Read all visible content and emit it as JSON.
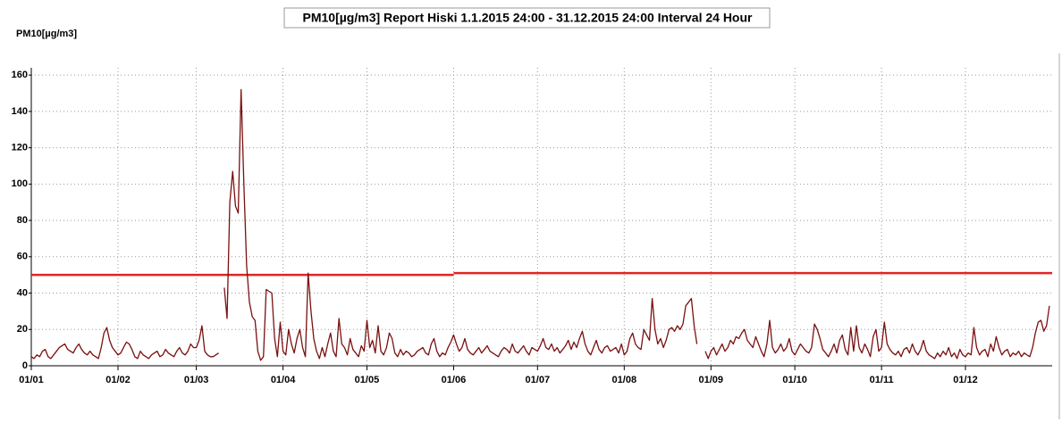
{
  "chart_data": {
    "type": "line",
    "title": "PM10[µg/m3] Report Hiski 1.1.2015 24:00 - 31.12.2015 24:00 Interval 24 Hour",
    "y_label": "PM10[µg/m3]",
    "xlim": [
      0,
      365
    ],
    "ylim": [
      0,
      164
    ],
    "xticks": [
      {
        "value": 0,
        "label": "01/01"
      },
      {
        "value": 31,
        "label": "01/02"
      },
      {
        "value": 59,
        "label": "01/03"
      },
      {
        "value": 90,
        "label": "01/04"
      },
      {
        "value": 120,
        "label": "01/05"
      },
      {
        "value": 151,
        "label": "01/06"
      },
      {
        "value": 181,
        "label": "01/07"
      },
      {
        "value": 212,
        "label": "01/08"
      },
      {
        "value": 243,
        "label": "01/09"
      },
      {
        "value": 273,
        "label": "01/10"
      },
      {
        "value": 304,
        "label": "01/11"
      },
      {
        "value": 334,
        "label": "01/12"
      }
    ],
    "yticks": [
      0,
      20,
      40,
      60,
      80,
      100,
      120,
      140,
      160
    ],
    "grid": true,
    "reference_lines": [
      {
        "value": 50,
        "xlim": [
          0,
          151
        ],
        "color": "#e02424"
      },
      {
        "value": 51,
        "xlim": [
          151,
          365
        ],
        "color": "#e02424"
      }
    ],
    "x": [
      0,
      1,
      2,
      3,
      4,
      5,
      6,
      7,
      8,
      9,
      10,
      11,
      12,
      13,
      14,
      15,
      16,
      17,
      18,
      19,
      20,
      21,
      22,
      23,
      24,
      25,
      26,
      27,
      28,
      29,
      30,
      31,
      32,
      33,
      34,
      35,
      36,
      37,
      38,
      39,
      40,
      41,
      42,
      43,
      44,
      45,
      46,
      47,
      48,
      49,
      50,
      51,
      52,
      53,
      54,
      55,
      56,
      57,
      58,
      59,
      60,
      61,
      62,
      63,
      64,
      65,
      66,
      67,
      68,
      69,
      70,
      71,
      72,
      73,
      74,
      75,
      76,
      77,
      78,
      79,
      80,
      81,
      82,
      83,
      84,
      85,
      86,
      87,
      88,
      89,
      90,
      91,
      92,
      93,
      94,
      95,
      96,
      97,
      98,
      99,
      100,
      101,
      102,
      103,
      104,
      105,
      106,
      107,
      108,
      109,
      110,
      111,
      112,
      113,
      114,
      115,
      116,
      117,
      118,
      119,
      120,
      121,
      122,
      123,
      124,
      125,
      126,
      127,
      128,
      129,
      130,
      131,
      132,
      133,
      134,
      135,
      136,
      137,
      138,
      139,
      140,
      141,
      142,
      143,
      144,
      145,
      146,
      147,
      148,
      149,
      150,
      151,
      152,
      153,
      154,
      155,
      156,
      157,
      158,
      159,
      160,
      161,
      162,
      163,
      164,
      165,
      166,
      167,
      168,
      169,
      170,
      171,
      172,
      173,
      174,
      175,
      176,
      177,
      178,
      179,
      180,
      181,
      182,
      183,
      184,
      185,
      186,
      187,
      188,
      189,
      190,
      191,
      192,
      193,
      194,
      195,
      196,
      197,
      198,
      199,
      200,
      201,
      202,
      203,
      204,
      205,
      206,
      207,
      208,
      209,
      210,
      211,
      212,
      213,
      214,
      215,
      216,
      217,
      218,
      219,
      220,
      221,
      222,
      223,
      224,
      225,
      226,
      227,
      228,
      229,
      230,
      231,
      232,
      233,
      234,
      235,
      236,
      237,
      238,
      239,
      240,
      241,
      242,
      243,
      244,
      245,
      246,
      247,
      248,
      249,
      250,
      251,
      252,
      253,
      254,
      255,
      256,
      257,
      258,
      259,
      260,
      261,
      262,
      263,
      264,
      265,
      266,
      267,
      268,
      269,
      270,
      271,
      272,
      273,
      274,
      275,
      276,
      277,
      278,
      279,
      280,
      281,
      282,
      283,
      284,
      285,
      286,
      287,
      288,
      289,
      290,
      291,
      292,
      293,
      294,
      295,
      296,
      297,
      298,
      299,
      300,
      301,
      302,
      303,
      304,
      305,
      306,
      307,
      308,
      309,
      310,
      311,
      312,
      313,
      314,
      315,
      316,
      317,
      318,
      319,
      320,
      321,
      322,
      323,
      324,
      325,
      326,
      327,
      328,
      329,
      330,
      331,
      332,
      333,
      334,
      335,
      336,
      337,
      338,
      339,
      340,
      341,
      342,
      343,
      344,
      345,
      346,
      347,
      348,
      349,
      350,
      351,
      352,
      353,
      354,
      355,
      356,
      357,
      358,
      359,
      360,
      361,
      362,
      363,
      364
    ],
    "series": [
      {
        "color": "#7a1010",
        "values": [
          5,
          4,
          6,
          5,
          8,
          9,
          5,
          4,
          6,
          8,
          10,
          11,
          12,
          9,
          8,
          7,
          10,
          12,
          9,
          7,
          6,
          8,
          6,
          5,
          4,
          10,
          18,
          21,
          14,
          10,
          8,
          6,
          7,
          10,
          13,
          12,
          9,
          5,
          4,
          8,
          6,
          5,
          4,
          6,
          7,
          8,
          5,
          6,
          9,
          7,
          6,
          5,
          8,
          10,
          7,
          6,
          8,
          12,
          10,
          10,
          14,
          22,
          8,
          6,
          5,
          5,
          6,
          7,
          null,
          43,
          26,
          90,
          107,
          88,
          84,
          152,
          100,
          55,
          35,
          27,
          25,
          8,
          3,
          5,
          42,
          41,
          40,
          15,
          5,
          24,
          8,
          6,
          20,
          12,
          7,
          15,
          20,
          10,
          5,
          51,
          30,
          15,
          8,
          4,
          10,
          5,
          12,
          18,
          8,
          5,
          26,
          12,
          10,
          6,
          15,
          9,
          7,
          5,
          11,
          8,
          25,
          10,
          14,
          7,
          22,
          8,
          6,
          10,
          18,
          15,
          7,
          5,
          9,
          6,
          8,
          7,
          5,
          6,
          8,
          9,
          10,
          7,
          6,
          12,
          15,
          8,
          5,
          7,
          6,
          10,
          13,
          17,
          12,
          8,
          10,
          15,
          9,
          7,
          6,
          8,
          10,
          7,
          9,
          11,
          8,
          7,
          6,
          5,
          8,
          10,
          9,
          7,
          12,
          8,
          7,
          9,
          11,
          8,
          6,
          10,
          9,
          8,
          11,
          15,
          10,
          9,
          12,
          8,
          10,
          7,
          9,
          11,
          14,
          9,
          13,
          10,
          15,
          19,
          12,
          8,
          6,
          10,
          14,
          9,
          7,
          10,
          11,
          8,
          9,
          10,
          7,
          12,
          6,
          8,
          15,
          18,
          12,
          10,
          9,
          20,
          17,
          14,
          37,
          20,
          12,
          15,
          10,
          14,
          20,
          21,
          19,
          22,
          20,
          23,
          33,
          35,
          37,
          22,
          12,
          null,
          null,
          8,
          4,
          8,
          10,
          6,
          9,
          12,
          8,
          10,
          14,
          12,
          16,
          15,
          18,
          20,
          14,
          12,
          10,
          16,
          12,
          8,
          5,
          12,
          25,
          10,
          7,
          9,
          12,
          8,
          10,
          15,
          8,
          6,
          9,
          12,
          10,
          8,
          7,
          10,
          23,
          20,
          15,
          9,
          7,
          5,
          8,
          12,
          7,
          14,
          17,
          9,
          6,
          21,
          8,
          22,
          10,
          7,
          12,
          9,
          5,
          16,
          20,
          8,
          10,
          24,
          12,
          9,
          7,
          6,
          8,
          5,
          9,
          10,
          7,
          12,
          8,
          6,
          9,
          14,
          8,
          6,
          5,
          4,
          7,
          5,
          8,
          6,
          10,
          5,
          7,
          4,
          9,
          6,
          5,
          7,
          6,
          21,
          10,
          6,
          8,
          9,
          5,
          12,
          8,
          16,
          10,
          6,
          8,
          9,
          5,
          7,
          6,
          8,
          5,
          7,
          6,
          5,
          10,
          18,
          24,
          25,
          19,
          22,
          33
        ]
      }
    ]
  }
}
